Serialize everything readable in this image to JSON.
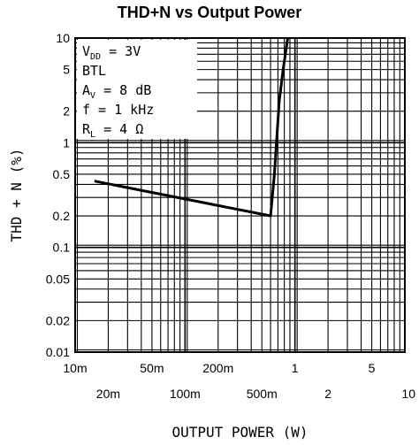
{
  "chart_data": {
    "type": "line",
    "title": "THD+N vs Output Power",
    "xlabel": "OUTPUT POWER (W)",
    "ylabel": "THD + N (%)",
    "xscale": "log",
    "yscale": "log",
    "xlim": [
      0.01,
      10
    ],
    "ylim": [
      0.01,
      10
    ],
    "grid": true,
    "x_ticks_row1": [
      {
        "value": 0.01,
        "label": "10m"
      },
      {
        "value": 0.05,
        "label": "50m"
      },
      {
        "value": 0.2,
        "label": "200m"
      },
      {
        "value": 1,
        "label": "1"
      },
      {
        "value": 5,
        "label": "5"
      }
    ],
    "x_ticks_row2": [
      {
        "value": 0.02,
        "label": "20m"
      },
      {
        "value": 0.1,
        "label": "100m"
      },
      {
        "value": 0.5,
        "label": "500m"
      },
      {
        "value": 2,
        "label": "2"
      },
      {
        "value": 10,
        "label": "10"
      }
    ],
    "y_ticks": [
      {
        "value": 10,
        "label": "10"
      },
      {
        "value": 5,
        "label": "5"
      },
      {
        "value": 2,
        "label": "2"
      },
      {
        "value": 1,
        "label": "1"
      },
      {
        "value": 0.5,
        "label": "0.5"
      },
      {
        "value": 0.2,
        "label": "0.2"
      },
      {
        "value": 0.1,
        "label": "0.1"
      },
      {
        "value": 0.05,
        "label": "0.05"
      },
      {
        "value": 0.02,
        "label": "0.02"
      },
      {
        "value": 0.01,
        "label": "0.01"
      }
    ],
    "series": [
      {
        "x": [
          0.015,
          0.6,
          0.65,
          0.72,
          0.78,
          0.86
        ],
        "y": [
          0.43,
          0.2,
          0.5,
          2.5,
          5.0,
          10.0
        ]
      }
    ],
    "annotation": {
      "vdd": {
        "main": "V",
        "sub": "DD",
        "rest": " = 3V"
      },
      "mode": "BTL",
      "av": {
        "main": "A",
        "sub": "V",
        "rest": " = 8 dB"
      },
      "freq": "f = 1 kHz",
      "rl": {
        "main": "R",
        "sub": "L",
        "rest": " = 4 Ω"
      }
    }
  }
}
